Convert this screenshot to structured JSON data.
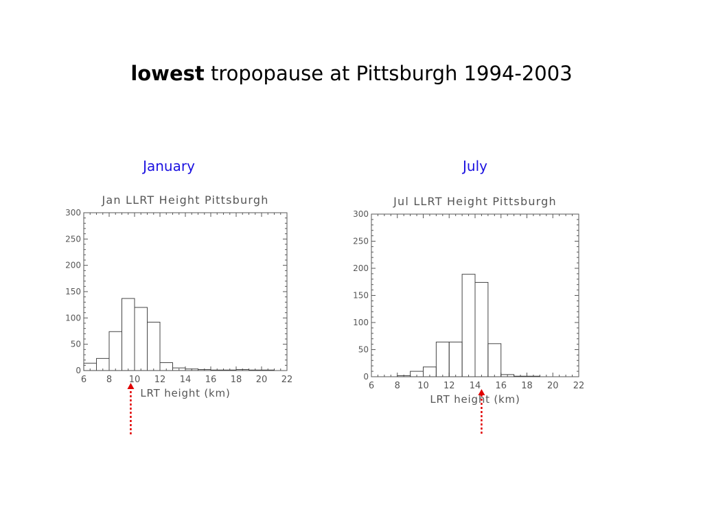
{
  "slide": {
    "title_bold": "lowest",
    "title_rest": " tropopause at Pittsburgh 1994-2003"
  },
  "panels": [
    {
      "label": "January"
    },
    {
      "label": "July"
    }
  ],
  "colors": {
    "panel_label": "#1a10e0",
    "arrow": "#e00000",
    "axis": "#555555"
  },
  "chart_data": [
    {
      "type": "bar",
      "title": "Jan LLRT Height Pittsburgh",
      "xlabel": "LRT height (km)",
      "ylabel": "",
      "xlim": [
        6,
        22
      ],
      "ylim": [
        0,
        300
      ],
      "bin_width": 1,
      "x_ticks": [
        6,
        8,
        10,
        12,
        14,
        16,
        18,
        20,
        22
      ],
      "y_ticks": [
        0,
        50,
        100,
        150,
        200,
        250,
        300
      ],
      "bins": [
        6.5,
        7.5,
        8.5,
        9.5,
        10.5,
        11.5,
        12.5,
        13.5,
        14.5,
        15.5,
        16.5,
        17.5,
        18.5,
        19.5,
        20.5
      ],
      "values": [
        14,
        23,
        74,
        137,
        120,
        92,
        15,
        5,
        3,
        2,
        1,
        1,
        2,
        1,
        1
      ],
      "marker": {
        "x": 9.7,
        "style": "dotted red arrow"
      },
      "grid": false
    },
    {
      "type": "bar",
      "title": "Jul LLRT Height Pittsburgh",
      "xlabel": "LRT height (km)",
      "ylabel": "",
      "xlim": [
        6,
        22
      ],
      "ylim": [
        0,
        300
      ],
      "bin_width": 1,
      "x_ticks": [
        6,
        8,
        10,
        12,
        14,
        16,
        18,
        20,
        22
      ],
      "y_ticks": [
        0,
        50,
        100,
        150,
        200,
        250,
        300
      ],
      "bins": [
        6.5,
        7.5,
        8.5,
        9.5,
        10.5,
        11.5,
        12.5,
        13.5,
        14.5,
        15.5,
        16.5,
        17.5,
        18.5,
        19.5,
        20.5
      ],
      "values": [
        0,
        0,
        2,
        10,
        18,
        64,
        64,
        189,
        174,
        61,
        4,
        1,
        1,
        0,
        0
      ],
      "marker": {
        "x": 14.5,
        "style": "dotted red arrow"
      },
      "grid": false
    }
  ]
}
